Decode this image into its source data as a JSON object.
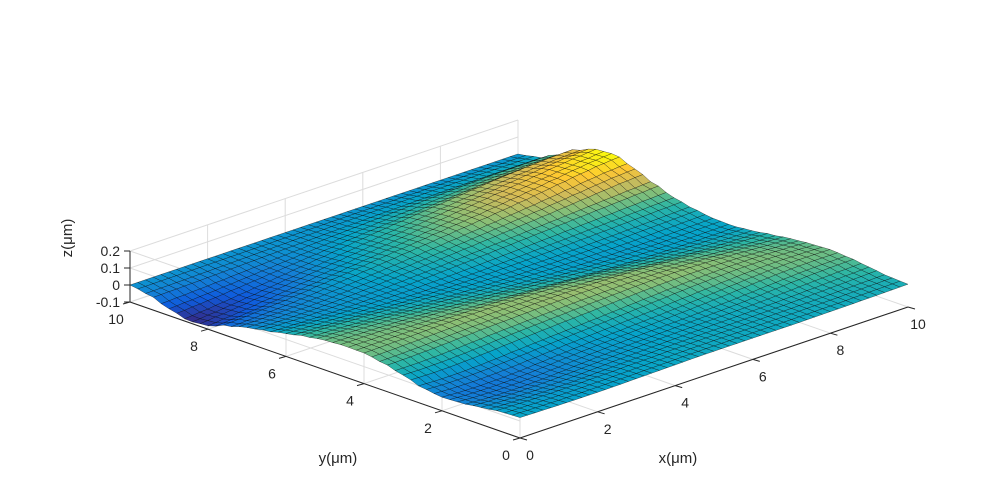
{
  "chart_data": {
    "type": "surface",
    "title": "",
    "xlabel": "x(μm)",
    "ylabel": "y(μm)",
    "zlabel": "z(μm)",
    "xlim": [
      0,
      10
    ],
    "ylim": [
      0,
      10
    ],
    "zlim": [
      -0.1,
      0.2
    ],
    "x_ticks": [
      {
        "value": 0,
        "label": "0"
      },
      {
        "value": 2,
        "label": "2"
      },
      {
        "value": 4,
        "label": "4"
      },
      {
        "value": 6,
        "label": "6"
      },
      {
        "value": 8,
        "label": "8"
      },
      {
        "value": 10,
        "label": "10"
      }
    ],
    "y_ticks": [
      {
        "value": 0,
        "label": "0"
      },
      {
        "value": 2,
        "label": "2"
      },
      {
        "value": 4,
        "label": "4"
      },
      {
        "value": 6,
        "label": "6"
      },
      {
        "value": 8,
        "label": "8"
      },
      {
        "value": 10,
        "label": "10"
      }
    ],
    "z_ticks": [
      {
        "value": -0.1,
        "label": "-0.1"
      },
      {
        "value": 0,
        "label": "0"
      },
      {
        "value": 0.1,
        "label": "0.1"
      },
      {
        "value": 0.2,
        "label": "0.2"
      }
    ],
    "grid": true,
    "colormap": "parula",
    "colormap_stops": [
      "#352a87",
      "#0f5cdd",
      "#1481d6",
      "#06a4ca",
      "#2eb7a4",
      "#87bf77",
      "#d1bb59",
      "#fec832",
      "#f9fb0e"
    ],
    "edge_color": "#000000",
    "grid_color": "#dcdcdc",
    "x_values": [
      0,
      0.5,
      1,
      1.5,
      2,
      2.5,
      3,
      3.5,
      4,
      4.5,
      5,
      5.5,
      6,
      6.5,
      7,
      7.5,
      8,
      8.5,
      9,
      9.5,
      10
    ],
    "y_values": [
      0,
      0.5,
      1,
      1.5,
      2,
      2.5,
      3,
      3.5,
      4,
      4.5,
      5,
      5.5,
      6,
      6.5,
      7,
      7.5,
      8,
      8.5,
      9,
      9.5,
      10
    ],
    "z_values": [
      [
        0.02,
        0.018,
        0.016,
        0.015,
        0.015,
        0.016,
        0.018,
        0.02,
        0.022,
        0.024,
        0.025,
        0.025,
        0.025,
        0.025,
        0.025,
        0.026,
        0.027,
        0.028,
        0.03,
        0.032,
        0.034
      ],
      [
        0.015,
        0.012,
        0.01,
        0.009,
        0.01,
        0.012,
        0.014,
        0.017,
        0.019,
        0.022,
        0.024,
        0.025,
        0.025,
        0.026,
        0.027,
        0.028,
        0.03,
        0.032,
        0.035,
        0.038,
        0.04
      ],
      [
        0.0,
        -0.005,
        -0.008,
        -0.008,
        -0.006,
        -0.002,
        0.003,
        0.008,
        0.012,
        0.016,
        0.019,
        0.022,
        0.024,
        0.026,
        0.028,
        0.031,
        0.035,
        0.04,
        0.045,
        0.05,
        0.055
      ],
      [
        -0.015,
        -0.022,
        -0.025,
        -0.024,
        -0.02,
        -0.013,
        -0.005,
        0.002,
        0.008,
        0.013,
        0.017,
        0.021,
        0.025,
        0.03,
        0.035,
        0.042,
        0.05,
        0.058,
        0.064,
        0.068,
        0.07
      ],
      [
        -0.02,
        -0.026,
        -0.028,
        -0.026,
        -0.02,
        -0.012,
        -0.003,
        0.005,
        0.012,
        0.018,
        0.024,
        0.03,
        0.037,
        0.045,
        0.053,
        0.062,
        0.07,
        0.076,
        0.08,
        0.08,
        0.078
      ],
      [
        -0.005,
        -0.01,
        -0.01,
        -0.006,
        0.0,
        0.008,
        0.016,
        0.023,
        0.03,
        0.037,
        0.045,
        0.053,
        0.06,
        0.068,
        0.075,
        0.08,
        0.084,
        0.085,
        0.083,
        0.078,
        0.072
      ],
      [
        0.03,
        0.028,
        0.03,
        0.035,
        0.042,
        0.05,
        0.057,
        0.063,
        0.069,
        0.075,
        0.08,
        0.085,
        0.09,
        0.093,
        0.094,
        0.092,
        0.088,
        0.082,
        0.075,
        0.068,
        0.062
      ],
      [
        0.06,
        0.062,
        0.066,
        0.071,
        0.077,
        0.082,
        0.086,
        0.09,
        0.094,
        0.097,
        0.098,
        0.098,
        0.096,
        0.092,
        0.086,
        0.078,
        0.07,
        0.062,
        0.055,
        0.05,
        0.046
      ],
      [
        0.08,
        0.082,
        0.085,
        0.088,
        0.091,
        0.093,
        0.094,
        0.094,
        0.092,
        0.089,
        0.084,
        0.078,
        0.07,
        0.062,
        0.054,
        0.046,
        0.04,
        0.035,
        0.032,
        0.03,
        0.029
      ],
      [
        0.082,
        0.082,
        0.082,
        0.081,
        0.079,
        0.076,
        0.072,
        0.067,
        0.061,
        0.054,
        0.047,
        0.04,
        0.033,
        0.027,
        0.022,
        0.018,
        0.016,
        0.015,
        0.015,
        0.016,
        0.018
      ],
      [
        0.075,
        0.073,
        0.07,
        0.066,
        0.061,
        0.055,
        0.049,
        0.043,
        0.036,
        0.03,
        0.024,
        0.019,
        0.015,
        0.012,
        0.01,
        0.01,
        0.011,
        0.013,
        0.016,
        0.019,
        0.022
      ],
      [
        0.058,
        0.055,
        0.05,
        0.045,
        0.039,
        0.033,
        0.028,
        0.023,
        0.019,
        0.016,
        0.014,
        0.013,
        0.013,
        0.014,
        0.016,
        0.019,
        0.022,
        0.026,
        0.03,
        0.034,
        0.038
      ],
      [
        0.034,
        0.03,
        0.025,
        0.02,
        0.016,
        0.013,
        0.011,
        0.01,
        0.011,
        0.013,
        0.016,
        0.02,
        0.024,
        0.029,
        0.034,
        0.039,
        0.044,
        0.049,
        0.054,
        0.059,
        0.063
      ],
      [
        0.01,
        0.006,
        0.003,
        0.002,
        0.003,
        0.006,
        0.01,
        0.015,
        0.021,
        0.027,
        0.034,
        0.041,
        0.048,
        0.055,
        0.062,
        0.069,
        0.076,
        0.083,
        0.09,
        0.097,
        0.104
      ],
      [
        -0.01,
        -0.012,
        -0.012,
        -0.009,
        -0.004,
        0.003,
        0.011,
        0.02,
        0.029,
        0.038,
        0.048,
        0.058,
        0.068,
        0.078,
        0.088,
        0.098,
        0.11,
        0.122,
        0.134,
        0.145,
        0.152
      ],
      [
        -0.04,
        -0.035,
        -0.028,
        -0.02,
        -0.01,
        0.002,
        0.014,
        0.026,
        0.038,
        0.05,
        0.062,
        0.074,
        0.086,
        0.098,
        0.111,
        0.125,
        0.14,
        0.156,
        0.172,
        0.186,
        0.195
      ],
      [
        -0.08,
        -0.07,
        -0.058,
        -0.044,
        -0.03,
        -0.016,
        -0.002,
        0.012,
        0.026,
        0.04,
        0.054,
        0.068,
        0.082,
        0.096,
        0.11,
        0.124,
        0.138,
        0.152,
        0.166,
        0.178,
        0.188
      ],
      [
        -0.09,
        -0.08,
        -0.068,
        -0.054,
        -0.04,
        -0.026,
        -0.012,
        0.002,
        0.016,
        0.03,
        0.044,
        0.057,
        0.07,
        0.082,
        0.094,
        0.106,
        0.118,
        0.128,
        0.136,
        0.142,
        0.145
      ],
      [
        -0.06,
        -0.054,
        -0.047,
        -0.039,
        -0.03,
        -0.021,
        -0.012,
        -0.003,
        0.006,
        0.015,
        0.023,
        0.031,
        0.038,
        0.045,
        0.052,
        0.058,
        0.064,
        0.069,
        0.072,
        0.074,
        0.075
      ],
      [
        -0.02,
        -0.018,
        -0.016,
        -0.013,
        -0.01,
        -0.007,
        -0.004,
        -0.001,
        0.002,
        0.005,
        0.008,
        0.011,
        0.013,
        0.015,
        0.017,
        0.018,
        0.019,
        0.02,
        0.02,
        0.02,
        0.02
      ],
      [
        0.0,
        0.0,
        0.0,
        0.0,
        0.0,
        0.0,
        0.0,
        0.0,
        0.0,
        0.0,
        0.0,
        0.0,
        0.0,
        0.0,
        0.0,
        0.0,
        0.0,
        0.0,
        0.0,
        0.0,
        0.0
      ]
    ]
  }
}
